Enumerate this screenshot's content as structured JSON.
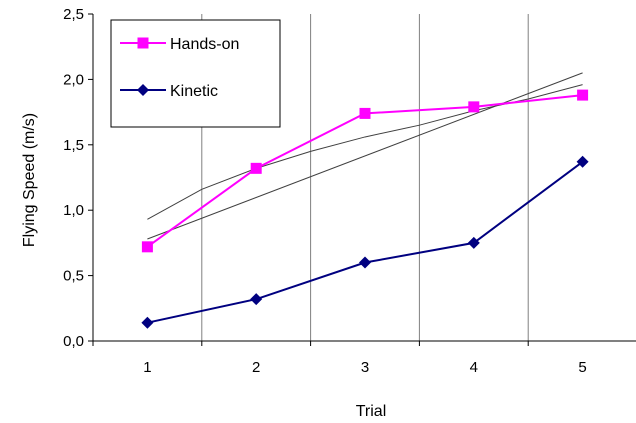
{
  "chart_data": {
    "type": "line",
    "title": "",
    "xlabel": "Trial",
    "ylabel": "Flying Speed (m/s)",
    "categories": [
      "1",
      "2",
      "3",
      "4",
      "5"
    ],
    "x": [
      1,
      2,
      3,
      4,
      5
    ],
    "ylim": [
      0,
      2.5
    ],
    "yticks": [
      0,
      0.5,
      1.0,
      1.5,
      2.0,
      2.5
    ],
    "ytick_labels": [
      "0,0",
      "0,5",
      "1,0",
      "1,5",
      "2,0",
      "2,5"
    ],
    "grid": {
      "horizontal": false,
      "vertical": true
    },
    "legend_position": "top-left",
    "series": [
      {
        "name": "Hands-on",
        "values": [
          0.72,
          1.32,
          1.74,
          1.79,
          1.88
        ],
        "color": "#ff00ff",
        "marker": "square"
      },
      {
        "name": "Kinetic",
        "values": [
          0.14,
          0.32,
          0.6,
          0.75,
          1.37
        ],
        "color": "#000080",
        "marker": "diamond"
      }
    ],
    "trendlines": [
      {
        "type": "linear",
        "x": [
          1,
          5
        ],
        "y": [
          0.78,
          2.05
        ],
        "color": "#404040"
      },
      {
        "type": "logarithmic",
        "x": [
          1,
          1.5,
          2,
          2.5,
          3,
          3.5,
          4,
          4.5,
          5
        ],
        "y": [
          0.93,
          1.16,
          1.32,
          1.45,
          1.56,
          1.65,
          1.76,
          1.85,
          1.96
        ],
        "color": "#404040"
      }
    ]
  }
}
